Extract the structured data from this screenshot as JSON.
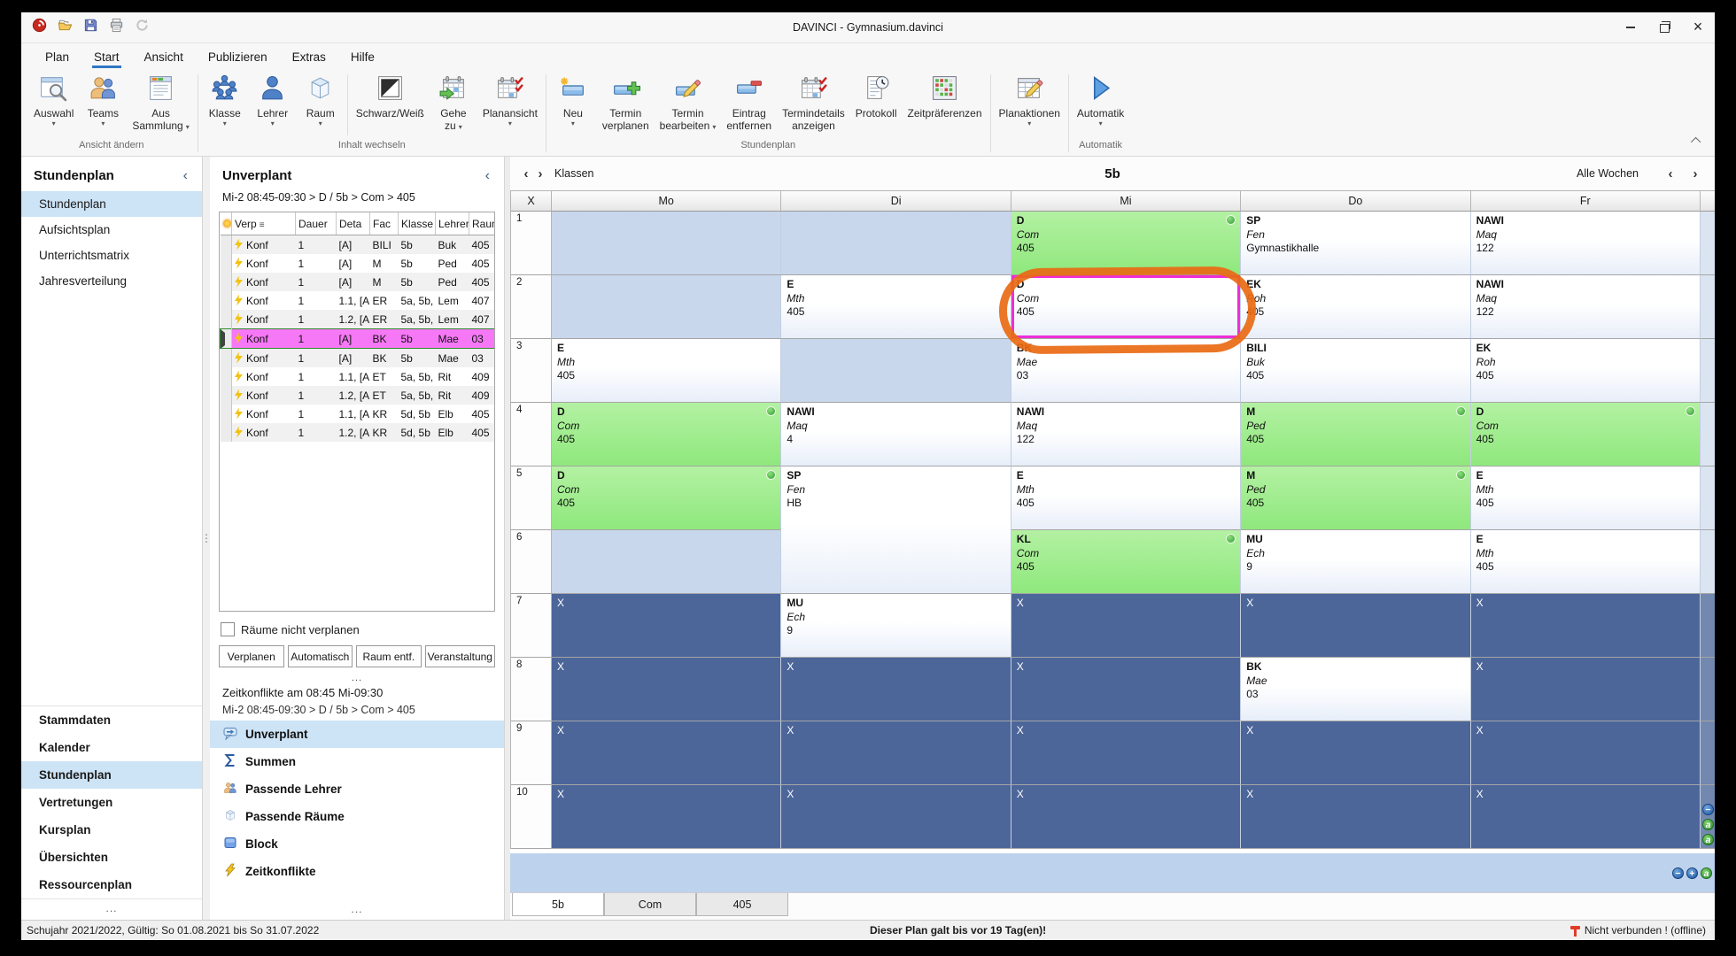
{
  "window": {
    "title": "DAVINCI - Gymnasium.davinci"
  },
  "quick_access": {
    "icons": [
      "davinci-app-icon",
      "open-file-icon",
      "save-icon",
      "print-icon",
      "sync-icon"
    ]
  },
  "menu": {
    "tabs": [
      "Plan",
      "Start",
      "Ansicht",
      "Publizieren",
      "Extras",
      "Hilfe"
    ],
    "active_tab": "Start"
  },
  "ribbon": {
    "groups": [
      {
        "label": "Ansicht ändern",
        "buttons": [
          {
            "name": "auswahl",
            "lines": [
              "Auswahl"
            ],
            "icon": "selection-icon",
            "dropdown": true
          },
          {
            "name": "teams",
            "lines": [
              "Teams"
            ],
            "icon": "teams-icon",
            "dropdown": true
          },
          {
            "name": "aus-sammlung",
            "lines": [
              "Aus",
              "Sammlung"
            ],
            "icon": "collection-icon",
            "dropdown": true
          }
        ]
      },
      {
        "label": "Inhalt wechseln",
        "buttons": [
          {
            "name": "klasse",
            "lines": [
              "Klasse"
            ],
            "icon": "class-icon",
            "dropdown": true
          },
          {
            "name": "lehrer",
            "lines": [
              "Lehrer"
            ],
            "icon": "teacher-icon",
            "dropdown": true
          },
          {
            "name": "raum",
            "lines": [
              "Raum"
            ],
            "icon": "room-icon",
            "dropdown": true
          },
          {
            "name": "schwarz-weiss",
            "lines": [
              "Schwarz/Weiß"
            ],
            "icon": "bw-icon",
            "sep_before": true
          },
          {
            "name": "gehe-zu",
            "lines": [
              "Gehe",
              "zu"
            ],
            "icon": "goto-icon",
            "dropdown": true
          },
          {
            "name": "planansicht",
            "lines": [
              "Planansicht"
            ],
            "icon": "planview-icon",
            "dropdown": true
          }
        ]
      },
      {
        "label": "Stundenplan",
        "buttons": [
          {
            "name": "neu",
            "lines": [
              "Neu"
            ],
            "icon": "new-icon",
            "dropdown": true
          },
          {
            "name": "termin-verplanen",
            "lines": [
              "Termin",
              "verplanen"
            ],
            "icon": "schedule-icon"
          },
          {
            "name": "termin-bearbeiten",
            "lines": [
              "Termin",
              "bearbeiten"
            ],
            "icon": "edit-icon",
            "dropdown": true
          },
          {
            "name": "eintrag-entfernen",
            "lines": [
              "Eintrag",
              "entfernen"
            ],
            "icon": "remove-icon"
          },
          {
            "name": "termindetails-anzeigen",
            "lines": [
              "Termindetails",
              "anzeigen"
            ],
            "icon": "details-icon"
          },
          {
            "name": "protokoll",
            "lines": [
              "Protokoll"
            ],
            "icon": "protocol-icon"
          },
          {
            "name": "zeitpraeferenzen",
            "lines": [
              "Zeitpräferenzen"
            ],
            "icon": "timeprefs-icon"
          }
        ]
      },
      {
        "label": "",
        "buttons": [
          {
            "name": "planaktionen",
            "lines": [
              "Planaktionen"
            ],
            "icon": "planactions-icon",
            "dropdown": true
          }
        ]
      },
      {
        "label": "Automatik",
        "buttons": [
          {
            "name": "automatik",
            "lines": [
              "Automatik"
            ],
            "icon": "automatic-icon",
            "dropdown": true
          }
        ]
      }
    ]
  },
  "sidebar": {
    "header": "Stundenplan",
    "items": [
      {
        "label": "Stundenplan",
        "selected": true
      },
      {
        "label": "Aufsichtsplan"
      },
      {
        "label": "Unterrichtsmatrix"
      },
      {
        "label": "Jahresverteilung"
      }
    ],
    "bottom_items": [
      {
        "label": "Stammdaten"
      },
      {
        "label": "Kalender"
      },
      {
        "label": "Stundenplan",
        "selected": true
      },
      {
        "label": "Vertretungen"
      },
      {
        "label": "Kursplan"
      },
      {
        "label": "Übersichten"
      },
      {
        "label": "Ressourcenplan"
      }
    ]
  },
  "panel": {
    "title": "Unverplant",
    "context": "Mi-2 08:45-09:30 > D / 5b > Com > 405",
    "table": {
      "columns": [
        "Verp",
        "Dauer",
        "Deta",
        "Fac",
        "Klasse",
        "Lehrer",
        "Raum"
      ],
      "rows": [
        {
          "verp": "Konf",
          "dauer": "1",
          "deta": "[A]",
          "fac": "BILI",
          "klasse": "5b",
          "lehrer": "Buk",
          "raum": "405"
        },
        {
          "verp": "Konf",
          "dauer": "1",
          "deta": "[A]",
          "fac": "M",
          "klasse": "5b",
          "lehrer": "Ped",
          "raum": "405"
        },
        {
          "verp": "Konf",
          "dauer": "1",
          "deta": "[A]",
          "fac": "M",
          "klasse": "5b",
          "lehrer": "Ped",
          "raum": "405"
        },
        {
          "verp": "Konf",
          "dauer": "1",
          "deta": "1.1, [A",
          "fac": "ER",
          "klasse": "5a, 5b,",
          "lehrer": "Lem",
          "raum": "407"
        },
        {
          "verp": "Konf",
          "dauer": "1",
          "deta": "1.2, [A",
          "fac": "ER",
          "klasse": "5a, 5b,",
          "lehrer": "Lem",
          "raum": "407"
        },
        {
          "verp": "Konf",
          "dauer": "1",
          "deta": "[A]",
          "fac": "BK",
          "klasse": "5b",
          "lehrer": "Mae",
          "raum": "03",
          "selected": true
        },
        {
          "verp": "Konf",
          "dauer": "1",
          "deta": "[A]",
          "fac": "BK",
          "klasse": "5b",
          "lehrer": "Mae",
          "raum": "03"
        },
        {
          "verp": "Konf",
          "dauer": "1",
          "deta": "1.1, [A",
          "fac": "ET",
          "klasse": "5a, 5b,",
          "lehrer": "Rit",
          "raum": "409"
        },
        {
          "verp": "Konf",
          "dauer": "1",
          "deta": "1.2, [A",
          "fac": "ET",
          "klasse": "5a, 5b,",
          "lehrer": "Rit",
          "raum": "409"
        },
        {
          "verp": "Konf",
          "dauer": "1",
          "deta": "1.1, [A",
          "fac": "KR",
          "klasse": "5d, 5b",
          "lehrer": "Elb",
          "raum": "405"
        },
        {
          "verp": "Konf",
          "dauer": "1",
          "deta": "1.2, [A",
          "fac": "KR",
          "klasse": "5d, 5b",
          "lehrer": "Elb",
          "raum": "405"
        }
      ]
    },
    "checkbox_label": "Räume nicht verplanen",
    "checkbox_checked": false,
    "buttons": [
      "Verplanen",
      "Automatisch",
      "Raum entf.",
      "Veranstaltung"
    ],
    "conflict_title": "Zeitkonflikte am 08:45 Mi-09:30",
    "conflict_detail": "Mi-2 08:45-09:30 > D / 5b > Com > 405",
    "views": [
      {
        "label": "Unverplant",
        "icon": "callout-icon",
        "selected": true
      },
      {
        "label": "Summen",
        "icon": "sum-icon"
      },
      {
        "label": "Passende Lehrer",
        "icon": "people-icon"
      },
      {
        "label": "Passende Räume",
        "icon": "cube-icon"
      },
      {
        "label": "Block",
        "icon": "block-icon"
      },
      {
        "label": "Zeitkonflikte",
        "icon": "lightning-icon"
      }
    ]
  },
  "plan": {
    "nav_group": "Klassen",
    "title": "5b",
    "week_selector": "Alle Wochen",
    "corner_label": "X",
    "blocked_label": "X",
    "columns": [
      "Mo",
      "Di",
      "Mi",
      "Do",
      "Fr"
    ],
    "rows": [
      {
        "period": "1",
        "cells": [
          {
            "kind": "empty"
          },
          {
            "kind": "empty"
          },
          {
            "kind": "planned",
            "subject": "D",
            "teacher": "Com",
            "room": "405",
            "dot": true
          },
          {
            "kind": "lesson",
            "subject": "SP",
            "teacher": "Fen",
            "room": "Gymnastikhalle"
          },
          {
            "kind": "lesson",
            "subject": "NAWI",
            "teacher": "Maq",
            "room": "122"
          }
        ]
      },
      {
        "period": "2",
        "cells": [
          {
            "kind": "empty"
          },
          {
            "kind": "lesson",
            "subject": "E",
            "teacher": "Mth",
            "room": "405"
          },
          {
            "kind": "lesson",
            "subject": "D",
            "teacher": "Com",
            "room": "405",
            "selected": true
          },
          {
            "kind": "lesson",
            "subject": "EK",
            "teacher": "Roh",
            "room": "405"
          },
          {
            "kind": "lesson",
            "subject": "NAWI",
            "teacher": "Maq",
            "room": "122"
          }
        ]
      },
      {
        "period": "3",
        "cells": [
          {
            "kind": "lesson",
            "subject": "E",
            "teacher": "Mth",
            "room": "405"
          },
          {
            "kind": "empty"
          },
          {
            "kind": "lesson",
            "subject": "BK",
            "teacher": "Mae",
            "room": "03"
          },
          {
            "kind": "lesson",
            "subject": "BILI",
            "teacher": "Buk",
            "room": "405"
          },
          {
            "kind": "lesson",
            "subject": "EK",
            "teacher": "Roh",
            "room": "405"
          }
        ]
      },
      {
        "period": "4",
        "cells": [
          {
            "kind": "planned",
            "subject": "D",
            "teacher": "Com",
            "room": "405",
            "dot": true
          },
          {
            "kind": "lesson",
            "subject": "NAWI",
            "teacher": "Maq",
            "room": "4"
          },
          {
            "kind": "lesson",
            "subject": "NAWI",
            "teacher": "Maq",
            "room": "122"
          },
          {
            "kind": "planned",
            "subject": "M",
            "teacher": "Ped",
            "room": "405",
            "dot": true
          },
          {
            "kind": "planned",
            "subject": "D",
            "teacher": "Com",
            "room": "405",
            "dot": true
          }
        ]
      },
      {
        "period": "5",
        "cells": [
          {
            "kind": "planned",
            "subject": "D",
            "teacher": "Com",
            "room": "405",
            "dot": true
          },
          {
            "kind": "lesson",
            "subject": "SP",
            "teacher": "Fen",
            "room": "HB",
            "span": 2
          },
          {
            "kind": "lesson",
            "subject": "E",
            "teacher": "Mth",
            "room": "405"
          },
          {
            "kind": "planned",
            "subject": "M",
            "teacher": "Ped",
            "room": "405",
            "dot": true
          },
          {
            "kind": "lesson",
            "subject": "E",
            "teacher": "Mth",
            "room": "405"
          }
        ]
      },
      {
        "period": "6",
        "cells": [
          {
            "kind": "empty"
          },
          {
            "kind": "skip"
          },
          {
            "kind": "planned",
            "subject": "KL",
            "teacher": "Com",
            "room": "405",
            "dot": true
          },
          {
            "kind": "lesson",
            "subject": "MU",
            "teacher": "Ech",
            "room": "9"
          },
          {
            "kind": "lesson",
            "subject": "E",
            "teacher": "Mth",
            "room": "405"
          }
        ]
      },
      {
        "period": "7",
        "cells": [
          {
            "kind": "blocked"
          },
          {
            "kind": "lesson",
            "subject": "MU",
            "teacher": "Ech",
            "room": "9"
          },
          {
            "kind": "blocked"
          },
          {
            "kind": "blocked"
          },
          {
            "kind": "blocked"
          }
        ]
      },
      {
        "period": "8",
        "cells": [
          {
            "kind": "blocked"
          },
          {
            "kind": "blocked"
          },
          {
            "kind": "blocked"
          },
          {
            "kind": "lesson",
            "subject": "BK",
            "teacher": "Mae",
            "room": "03"
          },
          {
            "kind": "blocked"
          }
        ]
      },
      {
        "period": "9",
        "cells": [
          {
            "kind": "blocked"
          },
          {
            "kind": "blocked"
          },
          {
            "kind": "blocked"
          },
          {
            "kind": "blocked"
          },
          {
            "kind": "blocked"
          }
        ]
      },
      {
        "period": "10",
        "cells": [
          {
            "kind": "blocked"
          },
          {
            "kind": "blocked"
          },
          {
            "kind": "blocked"
          },
          {
            "kind": "blocked"
          },
          {
            "kind": "blocked"
          }
        ]
      }
    ]
  },
  "page_tabs": {
    "tabs": [
      "5b",
      "Com",
      "405"
    ],
    "active": "5b"
  },
  "status_bar": {
    "left": "Schujahr 2021/2022, Gültig: So 01.08.2021 bis So 31.07.2022",
    "center": "Dieser Plan galt bis vor 19 Tag(en)!",
    "right": "Nicht verbunden ! (offline)"
  },
  "colors": {
    "selection_pink": "#f678f6",
    "cell_selected_border": "#ee2ed6",
    "annotation_orange": "#e96a14",
    "planned_green": "#9fee8e",
    "blocked_blue": "#4c669a",
    "empty_blue": "#c9d7ec",
    "accent_blue": "#2f76c4",
    "strip_blue": "#bdd2ec"
  },
  "ellipsis": "..."
}
